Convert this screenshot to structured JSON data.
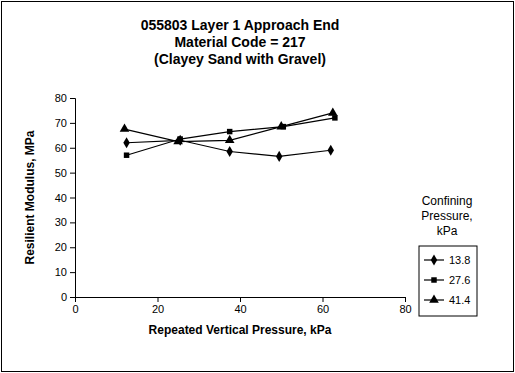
{
  "chart_data": {
    "type": "line",
    "title": "055803 Layer 1 Approach End\nMaterial Code = 217\n(Clayey Sand with Gravel)",
    "x_label": "Repeated Vertical Pressure, kPa",
    "y_label": "Resilient Modulus, MPa",
    "legend_title": "Confining Pressure, kPa",
    "legend": "right",
    "grid": false,
    "xlim": [
      0,
      80
    ],
    "xticks": [
      0,
      20,
      40,
      60,
      80
    ],
    "ylim": [
      0,
      80
    ],
    "yticks": [
      0,
      10,
      20,
      30,
      40,
      50,
      60,
      70,
      80
    ],
    "series": [
      {
        "name": "13.8",
        "color": "#000000",
        "marker": "diamond",
        "line_style": "solid",
        "x": [
          12.5,
          25.5,
          37.5,
          49.5,
          62
        ],
        "values": [
          62,
          63,
          58.5,
          56.5,
          59
        ]
      },
      {
        "name": "27.6",
        "color": "#000000",
        "marker": "square",
        "line_style": "solid",
        "x": [
          12.5,
          25.5,
          37.5,
          50.5,
          63
        ],
        "values": [
          57,
          63.5,
          66.5,
          68.5,
          72
        ]
      },
      {
        "name": "41.4",
        "color": "#000000",
        "marker": "triangle",
        "line_style": "solid",
        "x": [
          12,
          25,
          37.5,
          50,
          62.5
        ],
        "values": [
          67.5,
          62.5,
          63,
          68.5,
          74
        ]
      }
    ]
  }
}
